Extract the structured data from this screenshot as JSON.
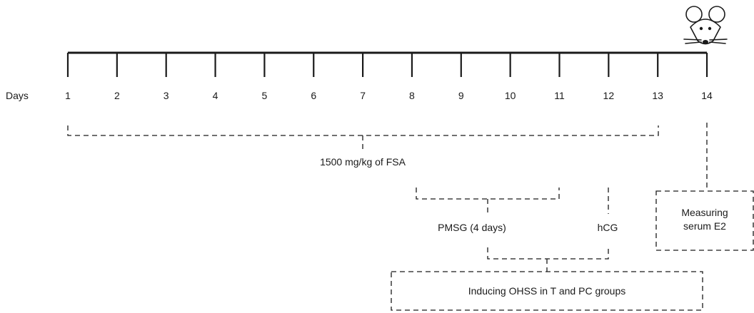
{
  "timeline": {
    "axis_label": "Days",
    "days": [
      "1",
      "2",
      "3",
      "4",
      "5",
      "6",
      "7",
      "8",
      "9",
      "10",
      "11",
      "12",
      "13",
      "14"
    ]
  },
  "annotations": {
    "fsa": "1500 mg/kg of FSA",
    "pmsg": "PMSG (4 days)",
    "hcg": "hCG",
    "ohss": "Inducing OHSS in T and PC groups",
    "measure_line1": "Measuring",
    "measure_line2": "serum E2"
  },
  "icons": {
    "end_marker": "mouse-icon"
  },
  "colors": {
    "line": "#1a1a1a",
    "text": "#1a1a1a"
  }
}
